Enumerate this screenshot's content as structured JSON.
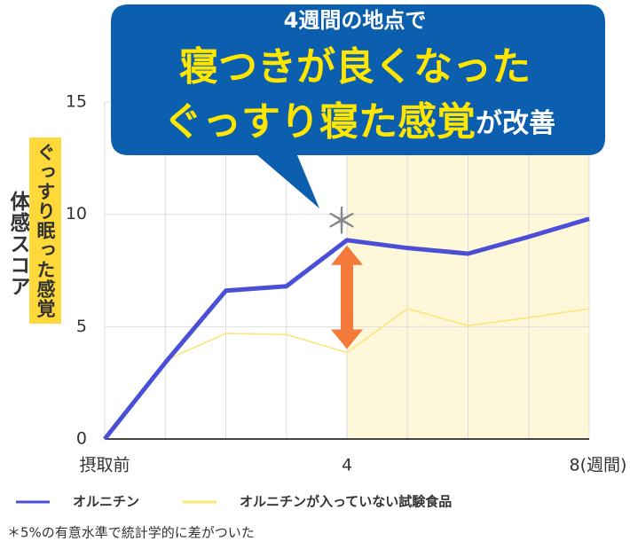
{
  "chart_data": {
    "type": "line",
    "callout": {
      "line1": "4週間の地点で",
      "line2": "寝つきが良くなった",
      "line3a": "ぐっすり寝た感覚",
      "line3b": "が改善"
    },
    "y_label": "体感スコア",
    "y_sublabel": "ぐっすり眠った感覚",
    "marker": "＊",
    "categories": [
      "摂取前",
      null,
      null,
      null,
      "4",
      null,
      null,
      null,
      "8(週間)"
    ],
    "series": [
      {
        "name": "オルニチン",
        "color": "#4a4fd6",
        "values": [
          0,
          3.4,
          6.6,
          6.8,
          8.85,
          8.5,
          8.25,
          9.0,
          9.8
        ]
      },
      {
        "name": "オルニチンが入っていない試験食品",
        "color": "#fde57a",
        "values": [
          0,
          3.5,
          4.7,
          4.65,
          3.85,
          5.8,
          5.05,
          5.4,
          5.8
        ]
      }
    ],
    "ylim": [
      0,
      15
    ],
    "yticks": [
      0,
      5,
      10,
      15
    ],
    "grid": true,
    "footnote": "＊5%の有意水準で統計学的に差がついた"
  }
}
